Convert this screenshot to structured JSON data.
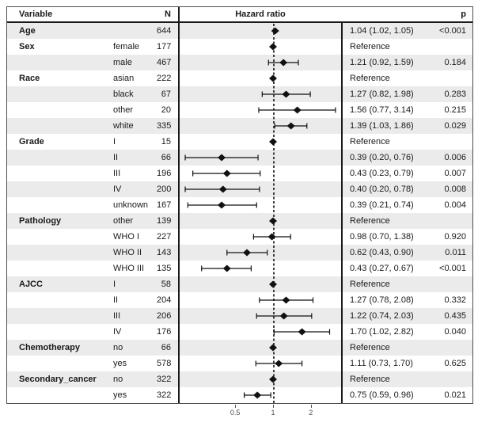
{
  "table": {
    "headers": {
      "variable": "Variable",
      "n": "N",
      "hazard_ratio": "Hazard ratio",
      "p": "p"
    }
  },
  "chart_data": {
    "type": "forest",
    "title": "Hazard ratio",
    "x_scale": "log2",
    "xlim": [
      0.18,
      3.5
    ],
    "reference_line": 1.0,
    "axis_ticks": [
      {
        "label": "0.5",
        "value": 0.5
      },
      {
        "label": "1",
        "value": 1.0
      },
      {
        "label": "2",
        "value": 2.0
      }
    ],
    "rows": [
      {
        "variable": "Age",
        "level": "",
        "n": "644",
        "hr": 1.04,
        "lo": 1.02,
        "hi": 1.05,
        "estimate": "1.04 (1.02, 1.05)",
        "p": "<0.001",
        "reference": false
      },
      {
        "variable": "Sex",
        "level": "female",
        "n": "177",
        "hr": 1.0,
        "lo": null,
        "hi": null,
        "estimate": "Reference",
        "p": "",
        "reference": true
      },
      {
        "variable": "",
        "level": "male",
        "n": "467",
        "hr": 1.21,
        "lo": 0.92,
        "hi": 1.59,
        "estimate": "1.21 (0.92, 1.59)",
        "p": "0.184",
        "reference": false
      },
      {
        "variable": "Race",
        "level": "asian",
        "n": "222",
        "hr": 1.0,
        "lo": null,
        "hi": null,
        "estimate": "Reference",
        "p": "",
        "reference": true
      },
      {
        "variable": "",
        "level": "black",
        "n": "67",
        "hr": 1.27,
        "lo": 0.82,
        "hi": 1.98,
        "estimate": "1.27 (0.82, 1.98)",
        "p": "0.283",
        "reference": false
      },
      {
        "variable": "",
        "level": "other",
        "n": "20",
        "hr": 1.56,
        "lo": 0.77,
        "hi": 3.14,
        "estimate": "1.56 (0.77, 3.14)",
        "p": "0.215",
        "reference": false
      },
      {
        "variable": "",
        "level": "white",
        "n": "335",
        "hr": 1.39,
        "lo": 1.03,
        "hi": 1.86,
        "estimate": "1.39 (1.03, 1.86)",
        "p": "0.029",
        "reference": false
      },
      {
        "variable": "Grade",
        "level": "I",
        "n": "15",
        "hr": 1.0,
        "lo": null,
        "hi": null,
        "estimate": "Reference",
        "p": "",
        "reference": true
      },
      {
        "variable": "",
        "level": "II",
        "n": "66",
        "hr": 0.39,
        "lo": 0.2,
        "hi": 0.76,
        "estimate": "0.39 (0.20, 0.76)",
        "p": "0.006",
        "reference": false
      },
      {
        "variable": "",
        "level": "III",
        "n": "196",
        "hr": 0.43,
        "lo": 0.23,
        "hi": 0.79,
        "estimate": "0.43 (0.23, 0.79)",
        "p": "0.007",
        "reference": false
      },
      {
        "variable": "",
        "level": "IV",
        "n": "200",
        "hr": 0.4,
        "lo": 0.2,
        "hi": 0.78,
        "estimate": "0.40 (0.20, 0.78)",
        "p": "0.008",
        "reference": false
      },
      {
        "variable": "",
        "level": "unknown",
        "n": "167",
        "hr": 0.39,
        "lo": 0.21,
        "hi": 0.74,
        "estimate": "0.39 (0.21, 0.74)",
        "p": "0.004",
        "reference": false
      },
      {
        "variable": "Pathology",
        "level": "other",
        "n": "139",
        "hr": 1.0,
        "lo": null,
        "hi": null,
        "estimate": "Reference",
        "p": "",
        "reference": true
      },
      {
        "variable": "",
        "level": "WHO I",
        "n": "227",
        "hr": 0.98,
        "lo": 0.7,
        "hi": 1.38,
        "estimate": "0.98 (0.70, 1.38)",
        "p": "0.920",
        "reference": false
      },
      {
        "variable": "",
        "level": "WHO II",
        "n": "143",
        "hr": 0.62,
        "lo": 0.43,
        "hi": 0.9,
        "estimate": "0.62 (0.43, 0.90)",
        "p": "0.011",
        "reference": false
      },
      {
        "variable": "",
        "level": "WHO III",
        "n": "135",
        "hr": 0.43,
        "lo": 0.27,
        "hi": 0.67,
        "estimate": "0.43 (0.27, 0.67)",
        "p": "<0.001",
        "reference": false
      },
      {
        "variable": "AJCC",
        "level": "I",
        "n": "58",
        "hr": 1.0,
        "lo": null,
        "hi": null,
        "estimate": "Reference",
        "p": "",
        "reference": true
      },
      {
        "variable": "",
        "level": "II",
        "n": "204",
        "hr": 1.27,
        "lo": 0.78,
        "hi": 2.08,
        "estimate": "1.27 (0.78, 2.08)",
        "p": "0.332",
        "reference": false
      },
      {
        "variable": "",
        "level": "III",
        "n": "206",
        "hr": 1.22,
        "lo": 0.74,
        "hi": 2.03,
        "estimate": "1.22 (0.74, 2.03)",
        "p": "0.435",
        "reference": false
      },
      {
        "variable": "",
        "level": "IV",
        "n": "176",
        "hr": 1.7,
        "lo": 1.02,
        "hi": 2.82,
        "estimate": "1.70 (1.02, 2.82)",
        "p": "0.040",
        "reference": false
      },
      {
        "variable": "Chemotherapy",
        "level": "no",
        "n": "66",
        "hr": 1.0,
        "lo": null,
        "hi": null,
        "estimate": "Reference",
        "p": "",
        "reference": true
      },
      {
        "variable": "",
        "level": "yes",
        "n": "578",
        "hr": 1.11,
        "lo": 0.73,
        "hi": 1.7,
        "estimate": "1.11 (0.73, 1.70)",
        "p": "0.625",
        "reference": false
      },
      {
        "variable": "Secondary_cancer",
        "level": "no",
        "n": "322",
        "hr": 1.0,
        "lo": null,
        "hi": null,
        "estimate": "Reference",
        "p": "",
        "reference": true
      },
      {
        "variable": "",
        "level": "yes",
        "n": "322",
        "hr": 0.75,
        "lo": 0.59,
        "hi": 0.96,
        "estimate": "0.75 (0.59, 0.96)",
        "p": "0.021",
        "reference": false
      }
    ]
  },
  "colors": {
    "stripe": "#ebebeb",
    "marker": "#111111",
    "border_outer": "#4d4d4d",
    "border_inner": "#1a1a1a",
    "axis_text": "#4d4d4d",
    "reference_line": "#3c3c3c"
  }
}
